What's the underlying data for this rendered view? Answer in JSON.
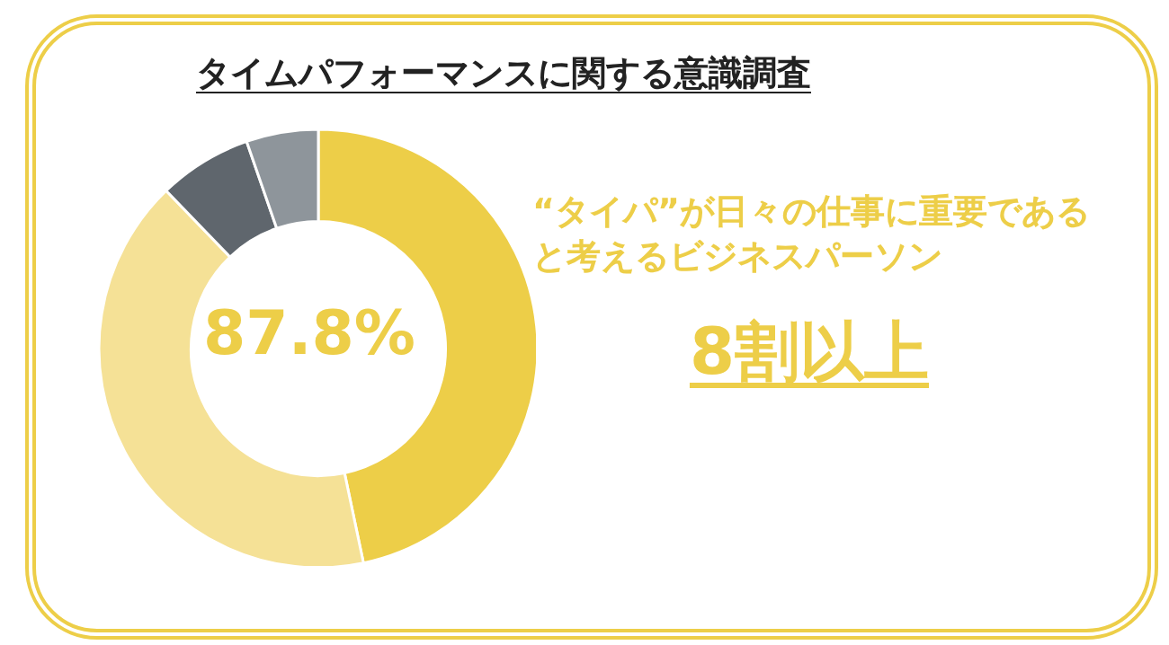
{
  "chart_data": {
    "type": "donut",
    "title": "タイムパフォーマンスに関する意識調査",
    "categories": [
      null,
      null,
      null,
      null
    ],
    "values": [
      46.7,
      41.1,
      6.9,
      5.3
    ],
    "colors": [
      "#edce48",
      "#f5e196",
      "#5f666d",
      "#8e959b"
    ],
    "annotations": [
      "87.8%",
      "“タイパ”が日々の仕事に重要であると考えるビジネスパーソン",
      "8割以上"
    ]
  }
}
